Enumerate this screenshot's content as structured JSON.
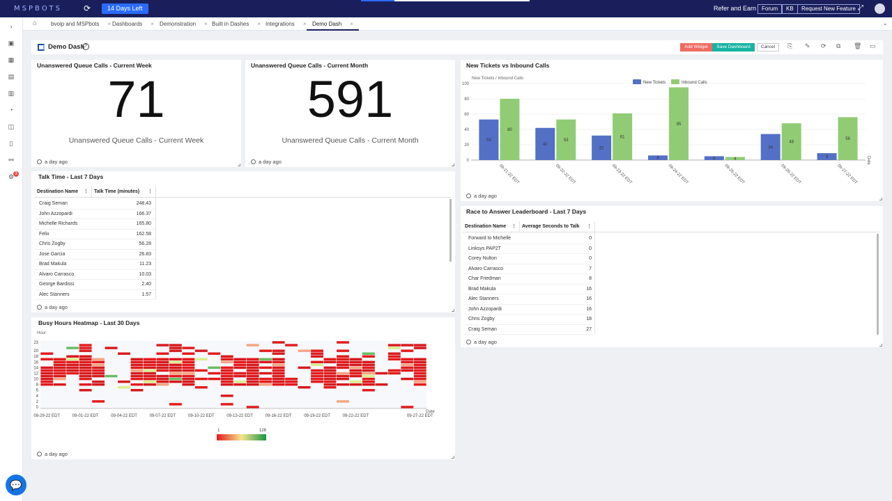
{
  "app": {
    "logo": "MSPBOTS",
    "trial": "14 Days Left",
    "refer": "Refer and Earn",
    "buttons": [
      "Forum",
      "KB",
      "Request New Feature"
    ]
  },
  "tabs": [
    {
      "label": "bvoip and MSPbots"
    },
    {
      "label": "Dashboards"
    },
    {
      "label": "Demonstration"
    },
    {
      "label": "Built in Dashes"
    },
    {
      "label": "Integrations"
    },
    {
      "label": "Demo Dash"
    }
  ],
  "dashboard": {
    "title": "Demo Dash",
    "add_widget": "Add Widget",
    "save": "Save Dashboard",
    "cancel": "Cancel"
  },
  "widgets": {
    "week": {
      "title": "Unanswered Queue Calls - Current Week",
      "value": "71",
      "subtitle": "Unanswered Queue Calls - Current Week",
      "footer": "a day ago"
    },
    "month": {
      "title": "Unanswered Queue Calls - Current Month",
      "value": "591",
      "subtitle": "Unanswered Queue Calls - Current Month",
      "footer": "a day ago"
    },
    "talk": {
      "title": "Talk Time - Last 7 Days",
      "columns": [
        "Destination Name",
        "Talk Time (minutes)"
      ],
      "rows": [
        [
          "Craig Seman",
          "248.43"
        ],
        [
          "John Azzopardi",
          "166.37"
        ],
        [
          "Michelle Richards",
          "165.80"
        ],
        [
          "Felix",
          "162.58"
        ],
        [
          "Chris Zogby",
          "56.28"
        ],
        [
          "Jose Garcia",
          "26.83"
        ],
        [
          "Brad Makula",
          "11.23"
        ],
        [
          "Alvaro Carrasco",
          "10.03"
        ],
        [
          "George Bardissi",
          "2.40"
        ],
        [
          "Alec Stanners",
          "1.57"
        ]
      ],
      "footer": "a day ago"
    },
    "race": {
      "title": "Race to Answer Leaderboard - Last 7 Days",
      "columns": [
        "Destination Name",
        "Average Seconds to Talk"
      ],
      "rows": [
        [
          "Forward to Michelle",
          "0"
        ],
        [
          "Linksys PAP2T",
          "0"
        ],
        [
          "Corey Nulton",
          "0"
        ],
        [
          "Alvaro Carrasco",
          "7"
        ],
        [
          "Char Friedman",
          "8"
        ],
        [
          "Brad Makula",
          "16"
        ],
        [
          "Alec Stanners",
          "16"
        ],
        [
          "John Azzopardi",
          "16"
        ],
        [
          "Chris Zogby",
          "18"
        ],
        [
          "Craig Seman",
          "27"
        ]
      ],
      "footer": "a day ago"
    },
    "tickets": {
      "title": "New Tickets vs Inbound Calls",
      "footer": "a day ago"
    },
    "heatmap": {
      "title": "Busy Hours Heatmap - Last 30 Days",
      "footer": "a day ago",
      "yaxis": "Hour",
      "xaxis": "Date",
      "y_ticks": [
        "23",
        "20",
        "18",
        "16",
        "14",
        "12",
        "10",
        "8",
        "6",
        "4",
        "2",
        "0"
      ],
      "x_ticks": [
        "08-29-22 EDT",
        "09-01-22 EDT",
        "09-04-22 EDT",
        "09-07-22 EDT",
        "09-10-22 EDT",
        "09-13-22 EDT",
        "09-16-22 EDT",
        "09-19-22 EDT",
        "09-22-22 EDT",
        "09-27-22 EDT"
      ],
      "scale_min": "1",
      "scale_max": "126"
    }
  },
  "chart_data": {
    "type": "bar",
    "ylabel": "New Tickets / Inbound Calls",
    "xlabel": "Date",
    "ylim": [
      0,
      100
    ],
    "y_ticks": [
      "100",
      "80",
      "60",
      "40",
      "20",
      "0"
    ],
    "categories": [
      "09-21-22 EDT",
      "09-22-22 EDT",
      "09-23-22 EDT",
      "09-24-22 EDT",
      "09-25-22 EDT",
      "09-26-22 EDT",
      "09-27-22 EDT"
    ],
    "legend": "top",
    "series": [
      {
        "name": "New Tickets",
        "color": "#5470c6",
        "values": [
          53,
          42,
          32,
          6,
          5,
          34,
          9
        ]
      },
      {
        "name": "Inbound Calls",
        "color": "#91cc75",
        "values": [
          80,
          53,
          61,
          95,
          4,
          48,
          56
        ]
      }
    ]
  }
}
